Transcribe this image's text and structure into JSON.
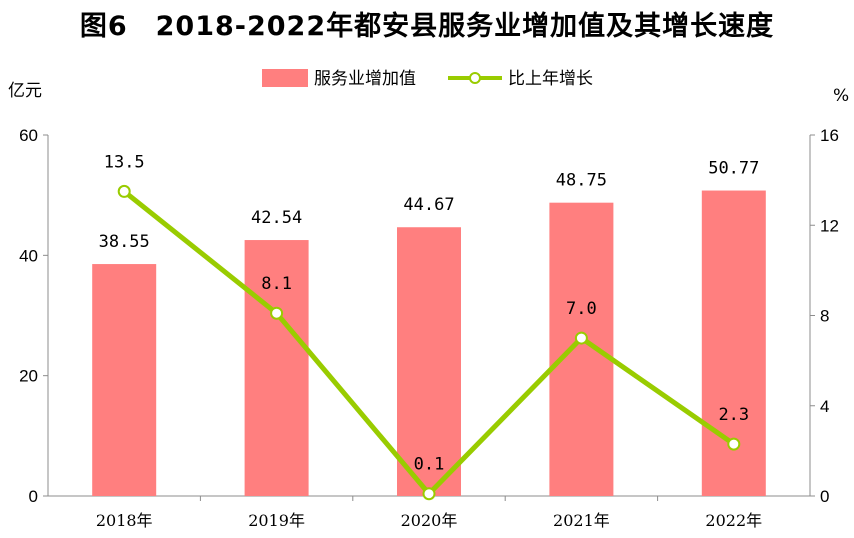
{
  "chart_data": {
    "type": "bar+line",
    "title": "图6　2018-2022年都安县服务业增加值及其增长速度",
    "categories": [
      "2018年",
      "2019年",
      "2020年",
      "2021年",
      "2022年"
    ],
    "series": [
      {
        "name": "服务业增加值",
        "type": "bar",
        "axis": "left",
        "values": [
          38.55,
          42.54,
          44.67,
          48.75,
          50.77
        ],
        "labels": [
          "38.55",
          "42.54",
          "44.67",
          "48.75",
          "50.77"
        ],
        "color": "#ff7f7f"
      },
      {
        "name": "比上年增长",
        "type": "line",
        "axis": "right",
        "values": [
          13.5,
          8.1,
          0.1,
          7.0,
          2.3
        ],
        "labels": [
          "13.5",
          "8.1",
          "0.1",
          "7.0",
          "2.3"
        ],
        "color": "#99cc00"
      }
    ],
    "y_left": {
      "label": "亿元",
      "min": 0,
      "max": 60,
      "ticks": [
        "0",
        "20",
        "40",
        "60"
      ]
    },
    "y_right": {
      "label": "%",
      "min": 0,
      "max": 16,
      "ticks": [
        "0",
        "4",
        "8",
        "12",
        "16"
      ]
    },
    "legend_position": "top-center"
  }
}
